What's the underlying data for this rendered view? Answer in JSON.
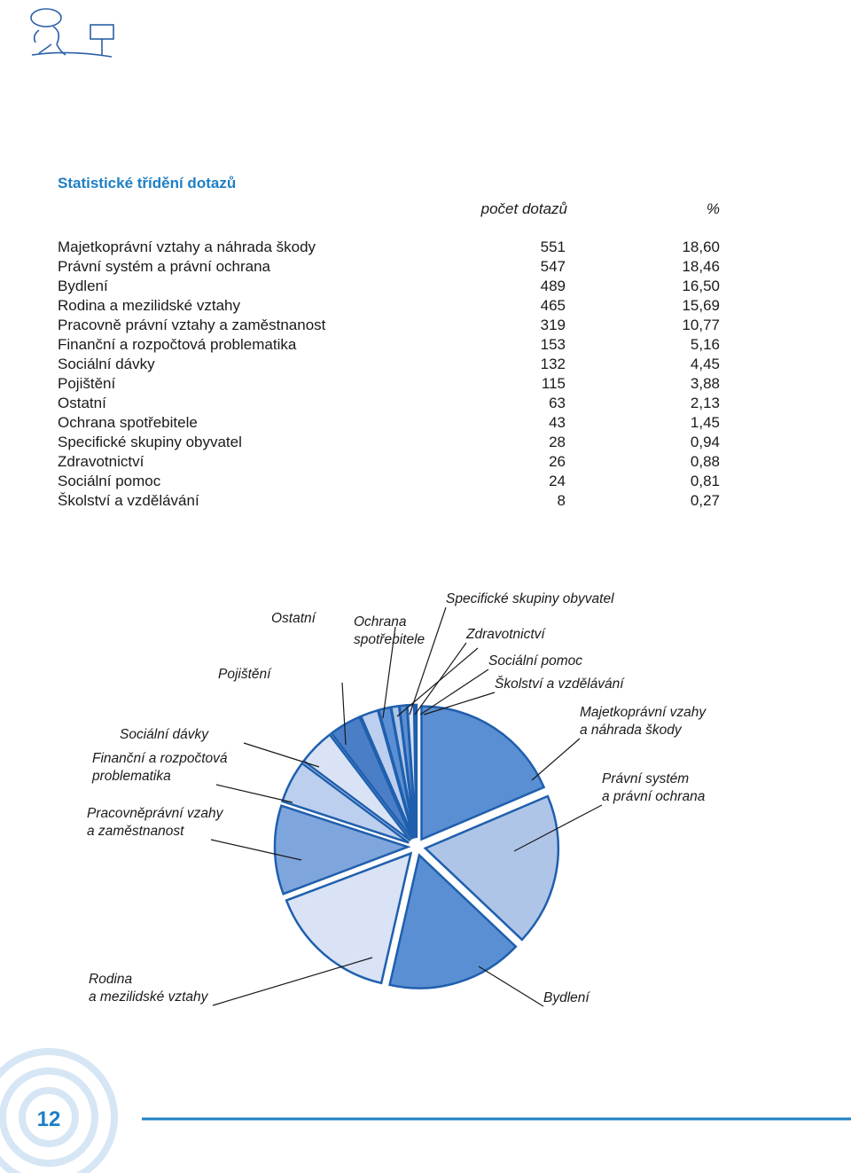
{
  "header": {
    "title": "Statistické třídění dotazů"
  },
  "table": {
    "columns": [
      "počet dotazů",
      "%"
    ],
    "rows": [
      {
        "name": "Majetkoprávní vztahy a náhrada škody",
        "count": 551,
        "percent": "18,60"
      },
      {
        "name": "Právní systém a právní ochrana",
        "count": 547,
        "percent": "18,46"
      },
      {
        "name": "Bydlení",
        "count": 489,
        "percent": "16,50"
      },
      {
        "name": "Rodina a mezilidské vztahy",
        "count": 465,
        "percent": "15,69"
      },
      {
        "name": "Pracovně právní vztahy a zaměstnanost",
        "count": 319,
        "percent": "10,77"
      },
      {
        "name": "Finanční a rozpočtová problematika",
        "count": 153,
        "percent": "5,16"
      },
      {
        "name": "Sociální dávky",
        "count": 132,
        "percent": "4,45"
      },
      {
        "name": "Pojištění",
        "count": 115,
        "percent": "3,88"
      },
      {
        "name": "Ostatní",
        "count": 63,
        "percent": "2,13"
      },
      {
        "name": "Ochrana spotřebitele",
        "count": 43,
        "percent": "1,45"
      },
      {
        "name": "Specifické skupiny obyvatel",
        "count": 28,
        "percent": "0,94"
      },
      {
        "name": "Zdravotnictví",
        "count": 26,
        "percent": "0,88"
      },
      {
        "name": "Sociální pomoc",
        "count": 24,
        "percent": "0,81"
      },
      {
        "name": "Školství a vzdělávání",
        "count": 8,
        "percent": "0,27"
      }
    ]
  },
  "pie": {
    "labels": [
      [
        "Majetkoprávní vzahy",
        "a náhrada škody"
      ],
      [
        "Právní systém",
        "a právní ochrana"
      ],
      [
        "Bydlení"
      ],
      [
        "Rodina",
        "a mezilidské vztahy"
      ],
      [
        "Pracovněprávní vzahy",
        "a zaměstnanost"
      ],
      [
        "Finanční a rozpočtová",
        "problematika"
      ],
      [
        "Sociální dávky"
      ],
      [
        "Pojištění"
      ],
      [
        "Ostatní"
      ],
      [
        "Ochrana",
        "spotřebitele"
      ],
      [
        "Specifické skupiny obyvatel"
      ],
      [
        "Zdravotnictví"
      ],
      [
        "Sociální pomoc"
      ],
      [
        "Školství a vzdělávání"
      ]
    ]
  },
  "footer": {
    "page_number": "12"
  }
}
